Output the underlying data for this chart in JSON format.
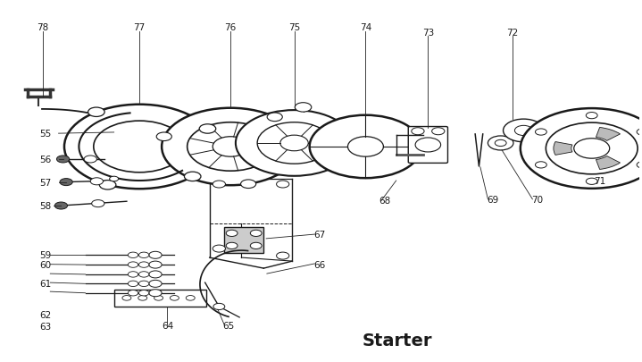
{
  "title": "Starter",
  "bg_color": "#ffffff",
  "line_color": "#1a1a1a",
  "label_color": "#1a1a1a",
  "figsize": [
    7.19,
    4.06
  ],
  "dpi": 100
}
